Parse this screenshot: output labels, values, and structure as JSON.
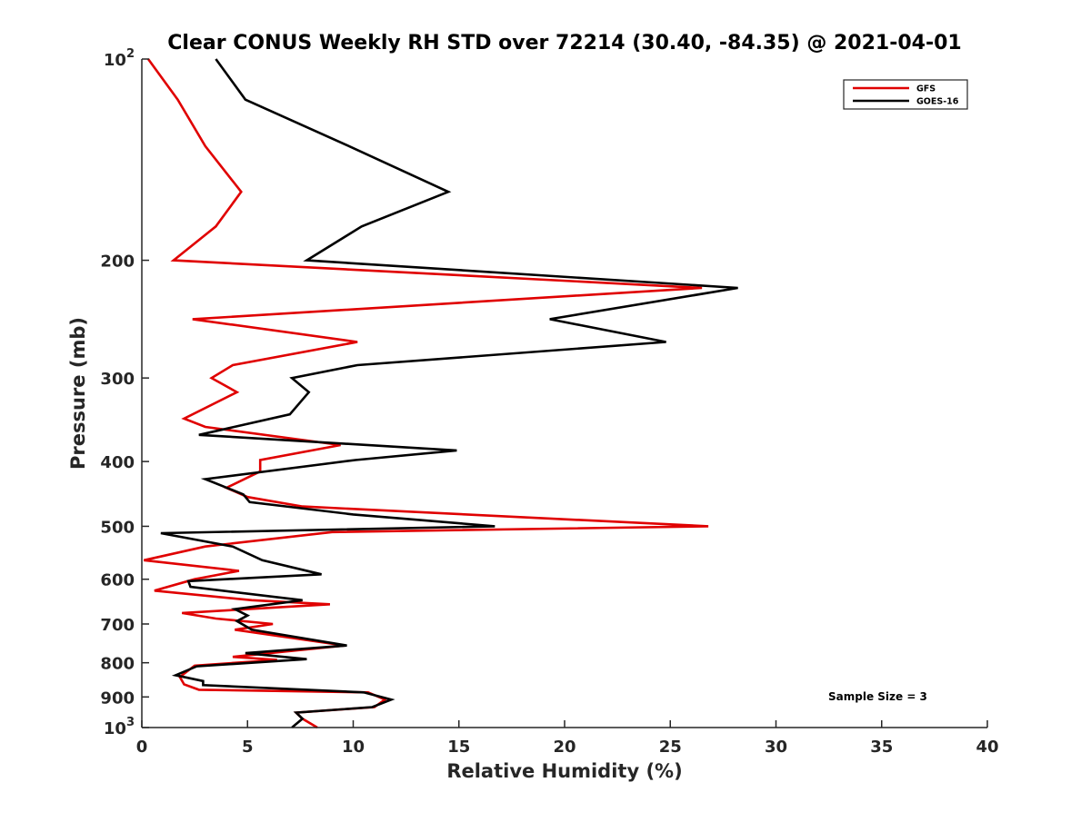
{
  "chart_data": {
    "type": "line",
    "title": "Clear CONUS Weekly RH STD over 72214 (30.40, -84.35) @ 2021-04-01",
    "xlabel": "Relative Humidity (%)",
    "ylabel": "Pressure (mb)",
    "xlim": [
      0,
      40
    ],
    "ylim": [
      100,
      1000
    ],
    "yscale": "log",
    "y_reversed": true,
    "xticks": [
      0,
      5,
      10,
      15,
      20,
      25,
      30,
      35,
      40
    ],
    "yticks": [
      {
        "value": 100,
        "base": "10",
        "exp": "2"
      },
      {
        "value": 200,
        "label": "200"
      },
      {
        "value": 300,
        "label": "300"
      },
      {
        "value": 400,
        "label": "400"
      },
      {
        "value": 500,
        "label": "500"
      },
      {
        "value": 600,
        "label": "600"
      },
      {
        "value": 700,
        "label": "700"
      },
      {
        "value": 800,
        "label": "800"
      },
      {
        "value": 900,
        "label": "900"
      },
      {
        "value": 1000,
        "base": "10",
        "exp": "3"
      }
    ],
    "legend_position": "top-right",
    "annotation": "Sample Size = 3",
    "series": [
      {
        "name": "GFS",
        "color": "#e00000",
        "points": [
          [
            0.3,
            100
          ],
          [
            1.7,
            115
          ],
          [
            3.0,
            135
          ],
          [
            4.7,
            158
          ],
          [
            3.5,
            178
          ],
          [
            1.5,
            200
          ],
          [
            26.5,
            220
          ],
          [
            2.4,
            245
          ],
          [
            10.2,
            265
          ],
          [
            4.3,
            287
          ],
          [
            3.3,
            300
          ],
          [
            4.5,
            315
          ],
          [
            2.0,
            345
          ],
          [
            3.0,
            355
          ],
          [
            9.4,
            378
          ],
          [
            5.6,
            398
          ],
          [
            5.6,
            414
          ],
          [
            4.0,
            438
          ],
          [
            5.0,
            452
          ],
          [
            7.6,
            467
          ],
          [
            26.8,
            500
          ],
          [
            9.0,
            510
          ],
          [
            3.0,
            536
          ],
          [
            0.1,
            562
          ],
          [
            4.6,
            583
          ],
          [
            2.5,
            600
          ],
          [
            0.6,
            624
          ],
          [
            5.2,
            645
          ],
          [
            8.9,
            654
          ],
          [
            1.9,
            674
          ],
          [
            3.5,
            687
          ],
          [
            6.2,
            700
          ],
          [
            4.4,
            714
          ],
          [
            9.6,
            754
          ],
          [
            4.3,
            784
          ],
          [
            6.4,
            792
          ],
          [
            2.5,
            808
          ],
          [
            1.8,
            840
          ],
          [
            2.0,
            862
          ],
          [
            2.7,
            878
          ],
          [
            10.7,
            886
          ],
          [
            11.5,
            908
          ],
          [
            11.0,
            932
          ],
          [
            7.3,
            950
          ],
          [
            7.6,
            970
          ],
          [
            8.3,
            1000
          ]
        ]
      },
      {
        "name": "GOES-16",
        "color": "#000000",
        "points": [
          [
            3.5,
            100
          ],
          [
            4.9,
            115
          ],
          [
            9.8,
            135
          ],
          [
            14.5,
            158
          ],
          [
            10.4,
            178
          ],
          [
            7.8,
            200
          ],
          [
            28.2,
            220
          ],
          [
            19.3,
            245
          ],
          [
            24.8,
            265
          ],
          [
            10.2,
            287
          ],
          [
            7.1,
            300
          ],
          [
            7.9,
            315
          ],
          [
            7.0,
            340
          ],
          [
            2.7,
            365
          ],
          [
            14.9,
            385
          ],
          [
            10.1,
            398
          ],
          [
            3.0,
            425
          ],
          [
            4.8,
            448
          ],
          [
            5.1,
            460
          ],
          [
            10.0,
            480
          ],
          [
            16.7,
            500
          ],
          [
            0.9,
            512
          ],
          [
            4.3,
            536
          ],
          [
            5.7,
            562
          ],
          [
            8.5,
            590
          ],
          [
            2.2,
            604
          ],
          [
            2.3,
            616
          ],
          [
            7.6,
            645
          ],
          [
            4.4,
            665
          ],
          [
            5.0,
            680
          ],
          [
            4.5,
            693
          ],
          [
            5.2,
            714
          ],
          [
            9.7,
            754
          ],
          [
            4.9,
            774
          ],
          [
            7.8,
            790
          ],
          [
            2.6,
            810
          ],
          [
            1.6,
            835
          ],
          [
            2.9,
            852
          ],
          [
            2.9,
            864
          ],
          [
            10.5,
            886
          ],
          [
            11.8,
            908
          ],
          [
            10.9,
            932
          ],
          [
            7.3,
            950
          ],
          [
            7.6,
            970
          ],
          [
            7.1,
            1000
          ]
        ]
      }
    ]
  }
}
